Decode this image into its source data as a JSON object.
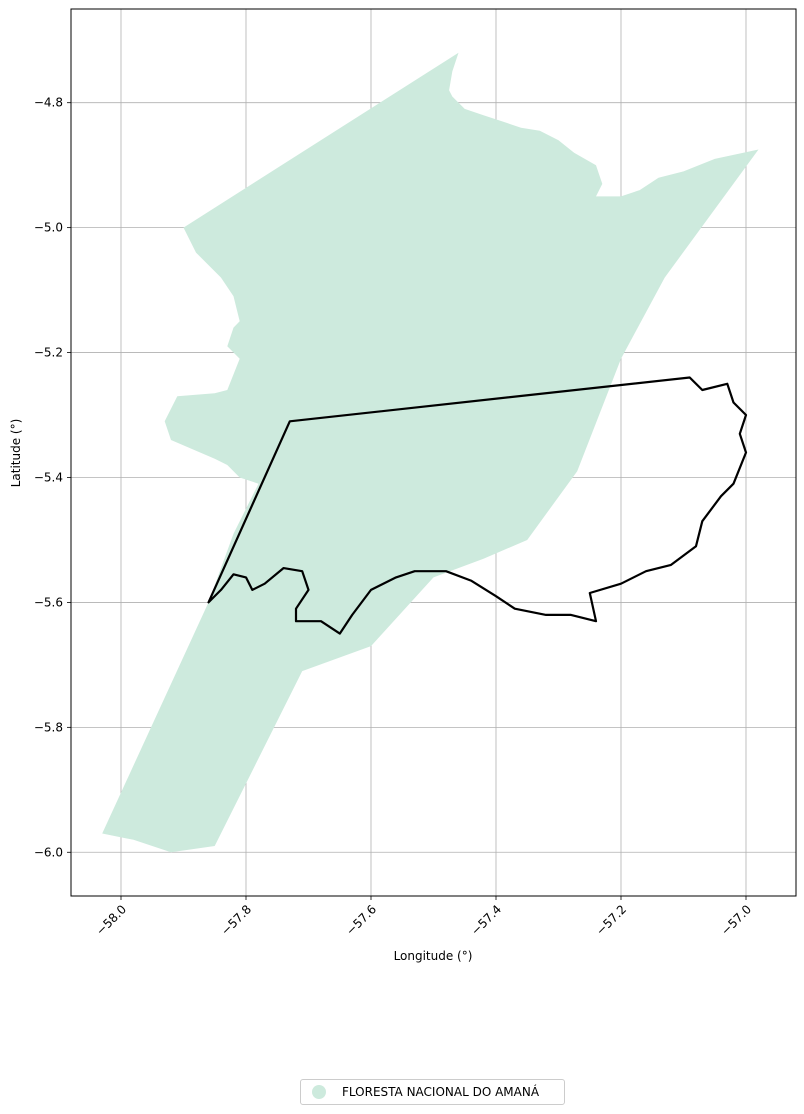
{
  "chart_data": {
    "type": "map",
    "xlabel": "Longitude (°)",
    "ylabel": "Latitude (°)",
    "xlim": [
      -58.08,
      -56.92
    ],
    "ylim": [
      -6.07,
      -4.65
    ],
    "xticks": [
      -58.0,
      -57.8,
      -57.6,
      -57.4,
      -57.2,
      -57.0
    ],
    "xtick_labels": [
      "−58.0",
      "−57.8",
      "−57.6",
      "−57.4",
      "−57.2",
      "−57.0"
    ],
    "yticks": [
      -4.8,
      -5.0,
      -5.2,
      -5.4,
      -5.6,
      -5.8,
      -6.0
    ],
    "ytick_labels": [
      "−4.8",
      "−5.0",
      "−5.2",
      "−5.4",
      "−5.6",
      "−5.8",
      "−6.0"
    ],
    "grid": true,
    "legend_placement": "bottom-center",
    "legend": [
      {
        "label": "FLORESTA NACIONAL DO AMANÁ",
        "color": "#cdeadd"
      }
    ],
    "area_polygon": [
      [
        -57.46,
        -4.72
      ],
      [
        -57.47,
        -4.75
      ],
      [
        -57.475,
        -4.78
      ],
      [
        -57.47,
        -4.79
      ],
      [
        -57.45,
        -4.81
      ],
      [
        -57.42,
        -4.82
      ],
      [
        -57.39,
        -4.83
      ],
      [
        -57.36,
        -4.84
      ],
      [
        -57.33,
        -4.845
      ],
      [
        -57.3,
        -4.86
      ],
      [
        -57.275,
        -4.88
      ],
      [
        -57.24,
        -4.9
      ],
      [
        -57.23,
        -4.93
      ],
      [
        -57.24,
        -4.95
      ],
      [
        -57.2,
        -4.95
      ],
      [
        -57.17,
        -4.94
      ],
      [
        -57.14,
        -4.92
      ],
      [
        -57.1,
        -4.91
      ],
      [
        -57.05,
        -4.89
      ],
      [
        -56.98,
        -4.875
      ],
      [
        -57.13,
        -5.08
      ],
      [
        -57.2,
        -5.21
      ],
      [
        -57.27,
        -5.39
      ],
      [
        -57.35,
        -5.5
      ],
      [
        -57.42,
        -5.53
      ],
      [
        -57.5,
        -5.56
      ],
      [
        -57.6,
        -5.67
      ],
      [
        -57.71,
        -5.71
      ],
      [
        -57.85,
        -5.99
      ],
      [
        -57.92,
        -6.0
      ],
      [
        -57.98,
        -5.98
      ],
      [
        -58.03,
        -5.97
      ],
      [
        -57.86,
        -5.6
      ],
      [
        -57.82,
        -5.49
      ],
      [
        -57.78,
        -5.41
      ],
      [
        -57.81,
        -5.4
      ],
      [
        -57.83,
        -5.38
      ],
      [
        -57.85,
        -5.37
      ],
      [
        -57.92,
        -5.34
      ],
      [
        -57.93,
        -5.31
      ],
      [
        -57.91,
        -5.27
      ],
      [
        -57.85,
        -5.265
      ],
      [
        -57.83,
        -5.26
      ],
      [
        -57.81,
        -5.21
      ],
      [
        -57.83,
        -5.19
      ],
      [
        -57.82,
        -5.16
      ],
      [
        -57.81,
        -5.15
      ],
      [
        -57.82,
        -5.11
      ],
      [
        -57.84,
        -5.08
      ],
      [
        -57.88,
        -5.04
      ],
      [
        -57.9,
        -5.0
      ]
    ],
    "boundary_polygon": [
      [
        -57.73,
        -5.31
      ],
      [
        -57.09,
        -5.24
      ],
      [
        -57.07,
        -5.26
      ],
      [
        -57.03,
        -5.25
      ],
      [
        -57.02,
        -5.28
      ],
      [
        -57.0,
        -5.3
      ],
      [
        -57.01,
        -5.33
      ],
      [
        -57.0,
        -5.36
      ],
      [
        -57.02,
        -5.41
      ],
      [
        -57.04,
        -5.43
      ],
      [
        -57.07,
        -5.47
      ],
      [
        -57.08,
        -5.51
      ],
      [
        -57.12,
        -5.54
      ],
      [
        -57.16,
        -5.55
      ],
      [
        -57.2,
        -5.57
      ],
      [
        -57.25,
        -5.585
      ],
      [
        -57.24,
        -5.63
      ],
      [
        -57.28,
        -5.62
      ],
      [
        -57.32,
        -5.62
      ],
      [
        -57.37,
        -5.61
      ],
      [
        -57.4,
        -5.59
      ],
      [
        -57.44,
        -5.565
      ],
      [
        -57.48,
        -5.55
      ],
      [
        -57.53,
        -5.55
      ],
      [
        -57.56,
        -5.56
      ],
      [
        -57.6,
        -5.58
      ],
      [
        -57.63,
        -5.62
      ],
      [
        -57.65,
        -5.65
      ],
      [
        -57.68,
        -5.63
      ],
      [
        -57.72,
        -5.63
      ],
      [
        -57.72,
        -5.61
      ],
      [
        -57.7,
        -5.58
      ],
      [
        -57.71,
        -5.55
      ],
      [
        -57.74,
        -5.545
      ],
      [
        -57.77,
        -5.57
      ],
      [
        -57.79,
        -5.58
      ],
      [
        -57.8,
        -5.56
      ],
      [
        -57.82,
        -5.555
      ],
      [
        -57.84,
        -5.58
      ],
      [
        -57.86,
        -5.6
      ]
    ]
  }
}
